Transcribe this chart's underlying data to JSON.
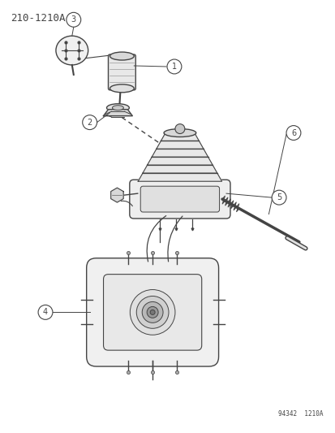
{
  "title": "210-1210A",
  "part_number": "94342  1210A",
  "background_color": "#ffffff",
  "line_color": "#444444",
  "fig_width": 4.14,
  "fig_height": 5.33,
  "dpi": 100
}
